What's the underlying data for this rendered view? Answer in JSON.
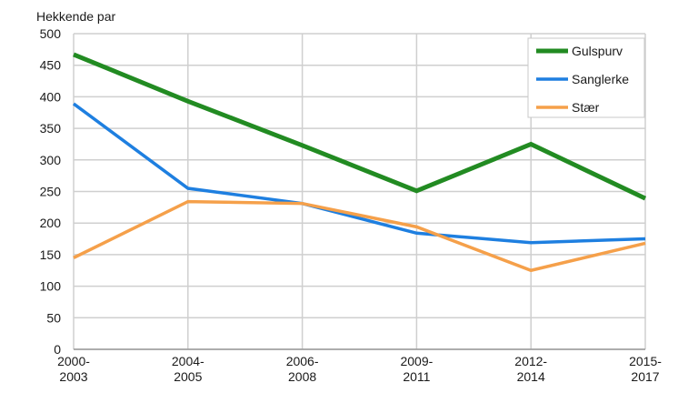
{
  "chart_data": {
    "type": "line",
    "ylabel": "Hekkende par",
    "xlabel": "",
    "ylim": [
      0,
      500
    ],
    "yticks": [
      0,
      50,
      100,
      150,
      200,
      250,
      300,
      350,
      400,
      450,
      500
    ],
    "grid": true,
    "legend_position": "top-right",
    "categories": [
      [
        "2000-",
        "2003"
      ],
      [
        "2004-",
        "2005"
      ],
      [
        "2006-",
        "2008"
      ],
      [
        "2009-",
        "2011"
      ],
      [
        "2012-",
        "2014"
      ],
      [
        "2015-",
        "2017"
      ]
    ],
    "series": [
      {
        "name": "Gulspurv",
        "color": "#228B22",
        "values": [
          467,
          393,
          323,
          251,
          325,
          239
        ]
      },
      {
        "name": "Sanglerke",
        "color": "#1E7FE0",
        "values": [
          389,
          255,
          231,
          184,
          169,
          175
        ]
      },
      {
        "name": "Stær",
        "color": "#F5A04A",
        "values": [
          145,
          234,
          231,
          194,
          125,
          168
        ]
      }
    ]
  }
}
